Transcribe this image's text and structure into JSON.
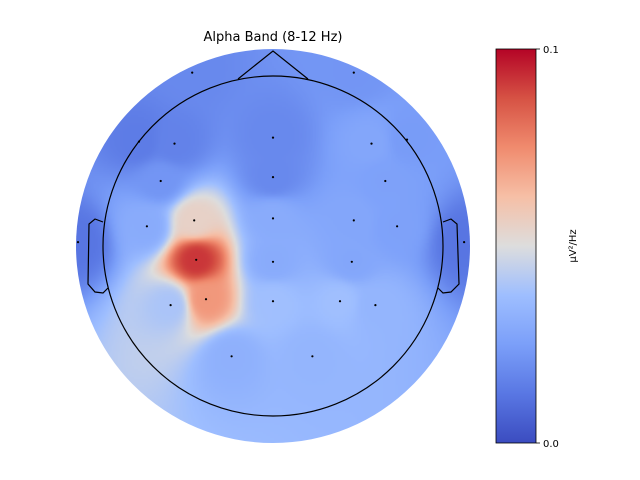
{
  "chart_data": {
    "type": "heatmap",
    "subtype": "eeg-topomap",
    "title": "Alpha Band (8-12 Hz)",
    "colormap": "coolwarm",
    "colorbar": {
      "label": "µV²/Hz",
      "vmin": 0.0,
      "vmax": 0.1,
      "ticks": [
        0.0,
        0.1
      ],
      "tick_labels": [
        "0.0",
        "0.1"
      ],
      "position": "right"
    },
    "channels": [
      {
        "u": -0.41,
        "v": -0.88,
        "value": 0.018
      },
      {
        "u": 0.41,
        "v": -0.88,
        "value": 0.022
      },
      {
        "u": -0.68,
        "v": -0.53,
        "value": 0.014
      },
      {
        "u": -0.5,
        "v": -0.52,
        "value": 0.016
      },
      {
        "u": 0.0,
        "v": -0.55,
        "value": 0.018
      },
      {
        "u": 0.5,
        "v": -0.52,
        "value": 0.028
      },
      {
        "u": 0.68,
        "v": -0.54,
        "value": 0.024
      },
      {
        "u": -0.57,
        "v": -0.33,
        "value": 0.022
      },
      {
        "u": 0.0,
        "v": -0.35,
        "value": 0.018
      },
      {
        "u": 0.57,
        "v": -0.33,
        "value": 0.026
      },
      {
        "u": -0.99,
        "v": -0.02,
        "value": 0.012
      },
      {
        "u": -0.64,
        "v": -0.1,
        "value": 0.03
      },
      {
        "u": -0.4,
        "v": -0.13,
        "value": 0.055
      },
      {
        "u": 0.0,
        "v": -0.14,
        "value": 0.03
      },
      {
        "u": 0.41,
        "v": -0.13,
        "value": 0.028
      },
      {
        "u": 0.63,
        "v": -0.1,
        "value": 0.026
      },
      {
        "u": 0.97,
        "v": -0.02,
        "value": 0.012
      },
      {
        "u": -0.39,
        "v": 0.07,
        "value": 0.092
      },
      {
        "u": 0.0,
        "v": 0.08,
        "value": 0.03
      },
      {
        "u": 0.4,
        "v": 0.08,
        "value": 0.028
      },
      {
        "u": -0.52,
        "v": 0.3,
        "value": 0.04
      },
      {
        "u": -0.34,
        "v": 0.27,
        "value": 0.072
      },
      {
        "u": 0.0,
        "v": 0.28,
        "value": 0.038
      },
      {
        "u": 0.34,
        "v": 0.28,
        "value": 0.038
      },
      {
        "u": 0.52,
        "v": 0.3,
        "value": 0.034
      },
      {
        "u": -0.21,
        "v": 0.56,
        "value": 0.032
      },
      {
        "u": 0.2,
        "v": 0.56,
        "value": 0.034
      }
    ]
  }
}
